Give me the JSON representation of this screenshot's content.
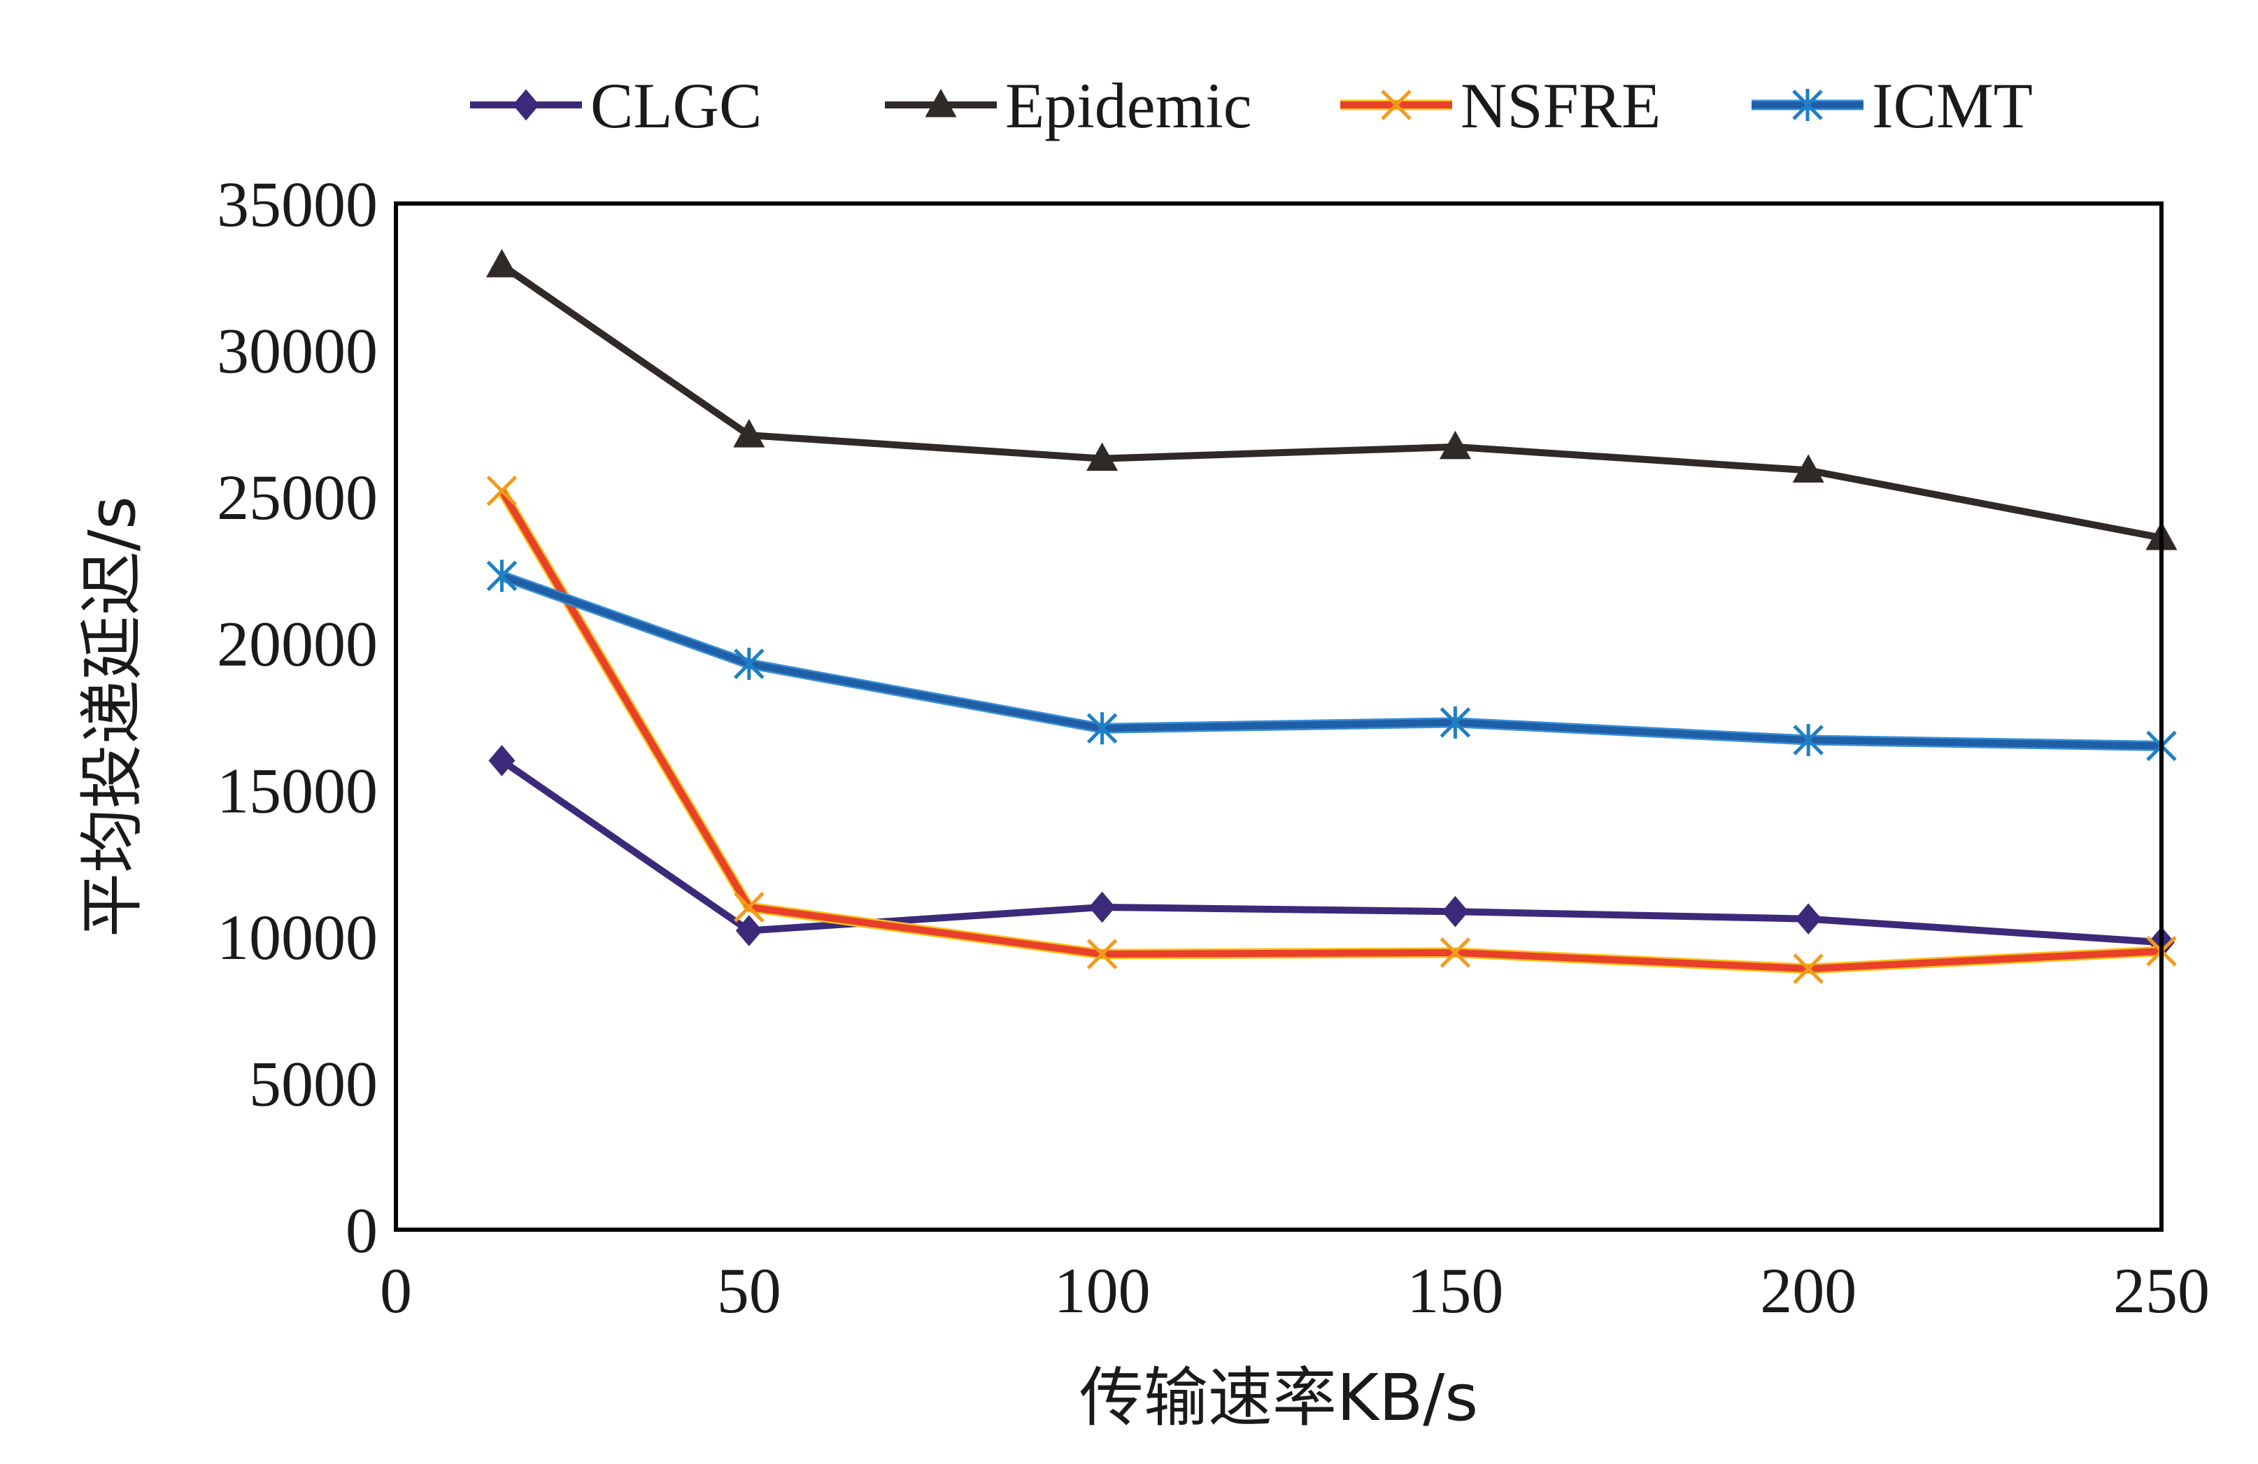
{
  "chart_data": {
    "type": "line",
    "title": "",
    "xlabel": "传输速率KB/s",
    "ylabel": "平均投递延迟/s",
    "x": [
      15,
      50,
      100,
      150,
      200,
      250
    ],
    "xlim": [
      0,
      250
    ],
    "ylim": [
      0,
      35000
    ],
    "xticks": [
      "0",
      "50",
      "100",
      "150",
      "200",
      "250"
    ],
    "yticks": [
      "0",
      "5000",
      "10000",
      "15000",
      "20000",
      "25000",
      "30000",
      "35000"
    ],
    "grid": false,
    "legend_position": "top",
    "series": [
      {
        "name": "CLGC",
        "marker": "diamond",
        "color": "#3b2a7a",
        "values": [
          16000,
          10200,
          11000,
          10850,
          10600,
          9800
        ]
      },
      {
        "name": "Epidemic",
        "marker": "triangle",
        "color": "#2f2a28",
        "values": [
          32900,
          27100,
          26300,
          26700,
          25900,
          23600
        ]
      },
      {
        "name": "NSFRE",
        "marker": "x",
        "color": "#e8402a",
        "values": [
          25200,
          11000,
          9400,
          9450,
          8900,
          9500
        ]
      },
      {
        "name": "ICMT",
        "marker": "asterisk",
        "color": "#1f5fa8",
        "values": [
          22300,
          19300,
          17100,
          17300,
          16700,
          16500
        ]
      }
    ]
  }
}
